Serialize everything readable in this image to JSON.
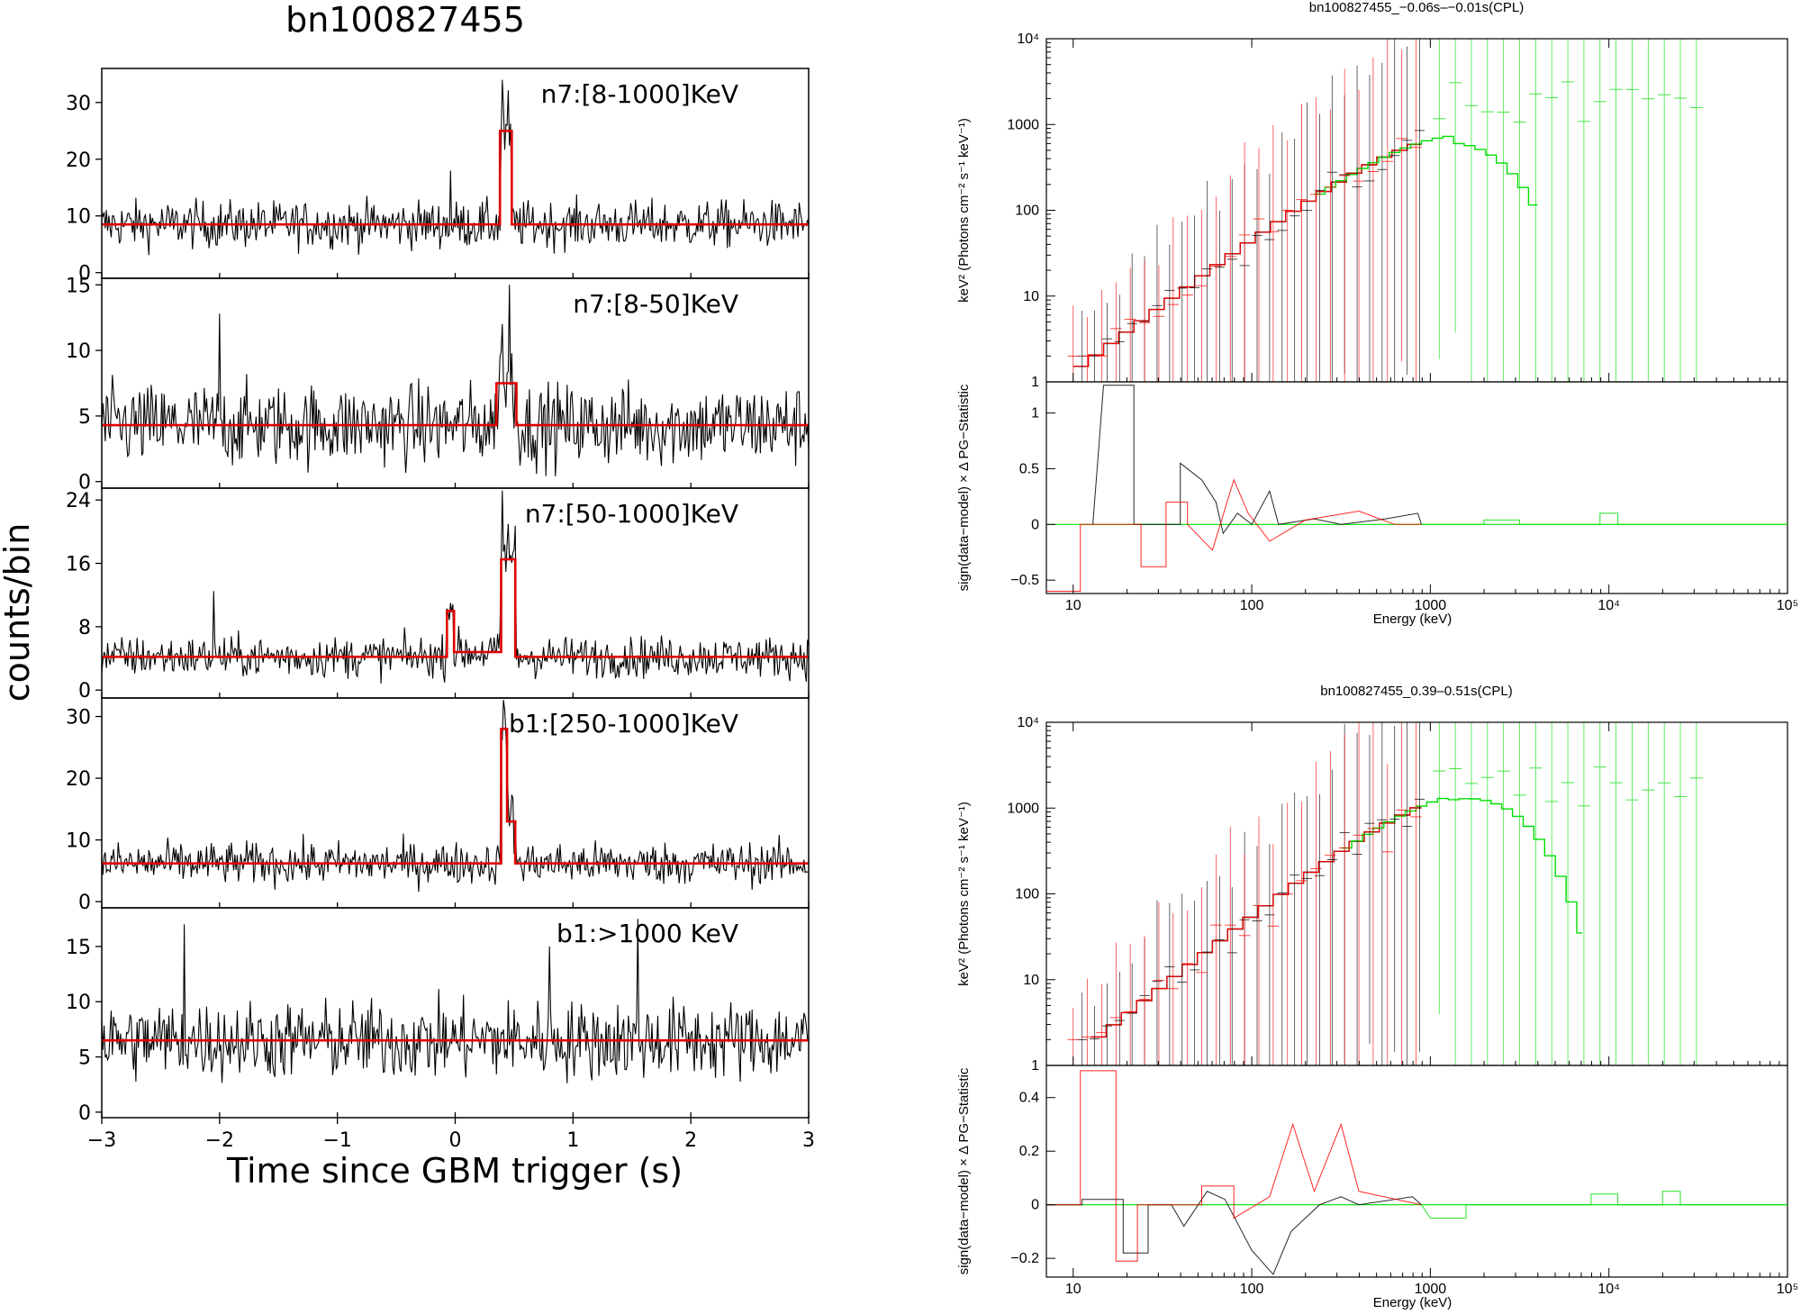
{
  "figure": {
    "lightcurve_title": "bn100827455",
    "ylabel": "counts/bin",
    "xlabel": "Time since GBM trigger (s)"
  },
  "chart_data": [
    {
      "type": "line",
      "title": "bn100827455",
      "xlabel": "Time since GBM trigger (s)",
      "ylabel": "counts/bin",
      "xlim": [
        -3,
        3
      ],
      "xticks": [
        "−3",
        "−2",
        "−1",
        "0",
        "1",
        "2",
        "3"
      ],
      "panels": [
        {
          "label": "n7:[8-1000]KeV",
          "ylim": [
            -1,
            36
          ],
          "yticks": [
            "0",
            "10",
            "20",
            "30"
          ],
          "noise": {
            "base": 8.5,
            "sd": 2.9
          },
          "model": [
            [
              -3,
              8.5
            ],
            [
              0.38,
              8.5
            ],
            [
              0.38,
              25
            ],
            [
              0.48,
              25
            ],
            [
              0.48,
              8.5
            ],
            [
              3,
              8.5
            ]
          ],
          "peaks": [
            [
              0.4,
              34
            ],
            [
              0.44,
              26
            ],
            [
              -0.04,
              18
            ]
          ]
        },
        {
          "label": "n7:[8-50]KeV",
          "ylim": [
            -0.5,
            15.5
          ],
          "yticks": [
            "0",
            "5",
            "10",
            "15"
          ],
          "noise": {
            "base": 4.3,
            "sd": 2.2
          },
          "model": [
            [
              -3,
              4.3
            ],
            [
              0.35,
              4.3
            ],
            [
              0.35,
              7.5
            ],
            [
              0.52,
              7.5
            ],
            [
              0.52,
              4.3
            ],
            [
              3,
              4.3
            ]
          ],
          "peaks": [
            [
              0.46,
              15
            ],
            [
              0.4,
              12
            ],
            [
              -2.0,
              12.8
            ]
          ]
        },
        {
          "label": "n7:[50-1000]KeV",
          "ylim": [
            -1,
            25.5
          ],
          "yticks": [
            "0",
            "8",
            "16",
            "24"
          ],
          "noise": {
            "base": 4.2,
            "sd": 1.8
          },
          "model": [
            [
              -3,
              4.2
            ],
            [
              -0.07,
              4.2
            ],
            [
              -0.07,
              10
            ],
            [
              -0.01,
              10
            ],
            [
              -0.01,
              4.8
            ],
            [
              0.39,
              4.8
            ],
            [
              0.39,
              16.5
            ],
            [
              0.51,
              16.5
            ],
            [
              0.51,
              4.2
            ],
            [
              3,
              4.2
            ]
          ],
          "peaks": [
            [
              0.4,
              26
            ],
            [
              0.45,
              21
            ],
            [
              -2.05,
              12.5
            ],
            [
              -0.04,
              11
            ]
          ]
        },
        {
          "label": "b1:[250-1000]KeV",
          "ylim": [
            -1,
            33
          ],
          "yticks": [
            "0",
            "10",
            "20",
            "30"
          ],
          "noise": {
            "base": 6.2,
            "sd": 2.4
          },
          "model": [
            [
              -3,
              6.2
            ],
            [
              0.39,
              6.2
            ],
            [
              0.39,
              28
            ],
            [
              0.44,
              28
            ],
            [
              0.44,
              13
            ],
            [
              0.51,
              13
            ],
            [
              0.51,
              6.2
            ],
            [
              3,
              6.2
            ]
          ],
          "peaks": [
            [
              0.42,
              31
            ],
            [
              0.44,
              22
            ]
          ]
        },
        {
          "label": "b1:>1000 KeV",
          "ylim": [
            -0.5,
            18.5
          ],
          "yticks": [
            "0",
            "5",
            "10",
            "15"
          ],
          "noise": {
            "base": 6.5,
            "sd": 2.5
          },
          "model": [
            [
              -3,
              6.5
            ],
            [
              3,
              6.5
            ]
          ],
          "peaks": [
            [
              -2.3,
              17
            ],
            [
              1.55,
              17.5
            ],
            [
              0.8,
              15
            ]
          ]
        }
      ]
    },
    {
      "type": "scatter",
      "title": "bn100827455_−0.06s–−0.01s(CPL)",
      "xlabel": "Energy (keV)",
      "ylabel_top": "keV² (Photons cm⁻² s⁻¹ keV⁻¹)",
      "ylabel_bottom": "sign(data−model) × Δ PG−Statistic",
      "x_log_range": [
        0.85,
        5
      ],
      "xticks": [
        [
          1,
          "10"
        ],
        [
          2,
          "100"
        ],
        [
          3,
          "1000"
        ],
        [
          4,
          "10⁴"
        ],
        [
          5,
          "10⁵"
        ]
      ],
      "top_log_range": [
        0,
        4
      ],
      "top_yticks": [
        [
          0,
          "1"
        ],
        [
          1,
          "10"
        ],
        [
          2,
          "100"
        ],
        [
          3,
          "1000"
        ],
        [
          4,
          "10⁴"
        ]
      ],
      "res_range": [
        -0.62,
        1.28
      ],
      "res_yticks": [
        [
          -0.5,
          "−0.5"
        ],
        [
          0,
          "0"
        ],
        [
          0.5,
          "0.5"
        ],
        [
          1,
          "1"
        ]
      ],
      "model": {
        "K": 50,
        "alpha": -0.42,
        "Ec": 950,
        "Ecut_plot": 6000
      },
      "model_segments": [
        {
          "color": "#000000",
          "lo": 1,
          "hi": 2.95
        },
        {
          "color": "#ff0000",
          "lo": 1,
          "hi": 2.95
        },
        {
          "color": "#00dd00",
          "lo": 2.35,
          "hi": 3.6
        }
      ],
      "residual_series": [
        {
          "color": "#000000",
          "steps": [
            [
              1.11,
              0
            ],
            [
              1.17,
              1.25
            ],
            [
              1.34,
              1.25
            ],
            [
              1.34,
              0
            ],
            [
              1.6,
              0
            ],
            [
              1.6,
              0.55
            ],
            [
              1.72,
              0.4
            ],
            [
              1.8,
              0.2
            ],
            [
              1.84,
              -0.08
            ],
            [
              1.92,
              0.1
            ],
            [
              2.0,
              0.0
            ],
            [
              2.1,
              0.3
            ],
            [
              2.15,
              0
            ],
            [
              2.35,
              0.05
            ],
            [
              2.5,
              0
            ],
            [
              2.75,
              0.05
            ],
            [
              2.93,
              0.1
            ],
            [
              2.95,
              0
            ]
          ]
        },
        {
          "color": "#ff0000",
          "steps": [
            [
              0.85,
              -0.6
            ],
            [
              1.04,
              -0.6
            ],
            [
              1.04,
              0
            ],
            [
              1.38,
              0
            ],
            [
              1.38,
              -0.38
            ],
            [
              1.52,
              -0.38
            ],
            [
              1.52,
              0.2
            ],
            [
              1.64,
              0.2
            ],
            [
              1.64,
              0
            ],
            [
              1.78,
              -0.23
            ],
            [
              1.9,
              0.4
            ],
            [
              1.98,
              0.1
            ],
            [
              2.1,
              -0.15
            ],
            [
              2.3,
              0.04
            ],
            [
              2.6,
              0.12
            ],
            [
              2.8,
              0
            ],
            [
              2.95,
              0
            ]
          ]
        },
        {
          "color": "#00dd00",
          "steps": [
            [
              2.95,
              0
            ],
            [
              3.3,
              0
            ],
            [
              3.3,
              0.04
            ],
            [
              3.5,
              0.04
            ],
            [
              3.5,
              0
            ],
            [
              3.95,
              0
            ],
            [
              3.95,
              0.1
            ],
            [
              4.05,
              0.1
            ],
            [
              4.05,
              0
            ],
            [
              5,
              0
            ]
          ]
        }
      ]
    },
    {
      "type": "scatter",
      "title": "bn100827455_0.39–0.51s(CPL)",
      "xlabel": "Energy (keV)",
      "ylabel_top": "keV² (Photons cm⁻² s⁻¹ keV⁻¹)",
      "ylabel_bottom": "sign(data−model) × Δ PG−Statistic",
      "x_log_range": [
        0.85,
        5
      ],
      "xticks": [
        [
          1,
          "10"
        ],
        [
          2,
          "100"
        ],
        [
          3,
          "1000"
        ],
        [
          4,
          "10⁴"
        ],
        [
          5,
          "10⁵"
        ]
      ],
      "top_log_range": [
        0,
        4
      ],
      "top_yticks": [
        [
          0,
          "1"
        ],
        [
          1,
          "10"
        ],
        [
          2,
          "100"
        ],
        [
          3,
          "1000"
        ],
        [
          4,
          "10⁴"
        ]
      ],
      "res_range": [
        -0.27,
        0.52
      ],
      "res_yticks": [
        [
          -0.2,
          "−0.2"
        ],
        [
          0,
          "0"
        ],
        [
          0.2,
          "0.2"
        ],
        [
          0.4,
          "0.4"
        ]
      ],
      "model": {
        "K": 60,
        "alpha": -0.32,
        "Ec": 1100,
        "Ecut_plot": 9000
      },
      "model_segments": [
        {
          "color": "#000000",
          "lo": 1.1,
          "hi": 2.95
        },
        {
          "color": "#ff0000",
          "lo": 1.1,
          "hi": 2.95
        },
        {
          "color": "#00dd00",
          "lo": 2.5,
          "hi": 3.85
        }
      ],
      "residual_series": [
        {
          "color": "#000000",
          "steps": [
            [
              0.85,
              0
            ],
            [
              1.05,
              0
            ],
            [
              1.05,
              0.02
            ],
            [
              1.28,
              0.02
            ],
            [
              1.28,
              -0.18
            ],
            [
              1.42,
              -0.18
            ],
            [
              1.42,
              0
            ],
            [
              1.55,
              0
            ],
            [
              1.62,
              -0.08
            ],
            [
              1.75,
              0.05
            ],
            [
              1.85,
              0.02
            ],
            [
              2.0,
              -0.17
            ],
            [
              2.12,
              -0.26
            ],
            [
              2.22,
              -0.1
            ],
            [
              2.38,
              0
            ],
            [
              2.5,
              0.03
            ],
            [
              2.6,
              0
            ],
            [
              2.9,
              0.03
            ],
            [
              2.95,
              0
            ]
          ]
        },
        {
          "color": "#ff0000",
          "steps": [
            [
              0.85,
              0
            ],
            [
              1.04,
              0
            ],
            [
              1.04,
              0.5
            ],
            [
              1.24,
              0.5
            ],
            [
              1.24,
              -0.21
            ],
            [
              1.36,
              -0.21
            ],
            [
              1.36,
              0
            ],
            [
              1.72,
              0
            ],
            [
              1.72,
              0.07
            ],
            [
              1.9,
              0.07
            ],
            [
              1.9,
              -0.05
            ],
            [
              2.1,
              0.03
            ],
            [
              2.23,
              0.3
            ],
            [
              2.35,
              0.05
            ],
            [
              2.5,
              0.3
            ],
            [
              2.6,
              0.05
            ],
            [
              2.95,
              0
            ]
          ]
        },
        {
          "color": "#00dd00",
          "steps": [
            [
              2.95,
              0
            ],
            [
              3.0,
              -0.05
            ],
            [
              3.2,
              -0.05
            ],
            [
              3.2,
              0
            ],
            [
              3.9,
              0
            ],
            [
              3.9,
              0.04
            ],
            [
              4.05,
              0.04
            ],
            [
              4.05,
              0
            ],
            [
              4.3,
              0
            ],
            [
              4.3,
              0.05
            ],
            [
              4.4,
              0.05
            ],
            [
              4.4,
              0
            ],
            [
              5,
              0
            ]
          ]
        }
      ]
    }
  ]
}
